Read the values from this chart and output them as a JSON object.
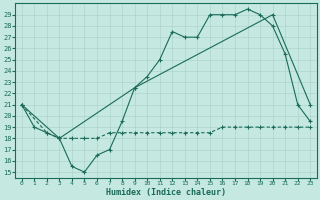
{
  "xlabel": "Humidex (Indice chaleur)",
  "bg_color": "#c5e8e0",
  "line_color": "#1a6b5a",
  "grid_color": "#aad0c8",
  "xlim": [
    -0.5,
    23.5
  ],
  "ylim": [
    14.5,
    30.0
  ],
  "xticks": [
    0,
    1,
    2,
    3,
    4,
    5,
    6,
    7,
    8,
    9,
    10,
    11,
    12,
    13,
    14,
    15,
    16,
    17,
    18,
    19,
    20,
    21,
    22,
    23
  ],
  "yticks": [
    15,
    16,
    17,
    18,
    19,
    20,
    21,
    22,
    23,
    24,
    25,
    26,
    27,
    28,
    29
  ],
  "line1_x": [
    0,
    1,
    2,
    3,
    4,
    5,
    6,
    7,
    8,
    9,
    10,
    11,
    12,
    13,
    14,
    15,
    16,
    17,
    18,
    19,
    20,
    21,
    22,
    23
  ],
  "line1_y": [
    21.0,
    19.0,
    18.5,
    18.0,
    15.5,
    15.0,
    16.5,
    17.0,
    19.5,
    22.5,
    23.5,
    25.0,
    27.5,
    27.0,
    27.0,
    29.0,
    29.0,
    29.0,
    29.5,
    29.0,
    28.0,
    25.5,
    21.0,
    19.5
  ],
  "line2_x": [
    0,
    2,
    3,
    4,
    5,
    6,
    7,
    8,
    9,
    10,
    11,
    12,
    13,
    14,
    15,
    16,
    17,
    18,
    19,
    20,
    21,
    22,
    23
  ],
  "line2_y": [
    21.0,
    18.5,
    18.0,
    18.0,
    18.0,
    18.0,
    18.5,
    18.5,
    18.5,
    18.5,
    18.5,
    18.5,
    18.5,
    18.5,
    18.5,
    19.0,
    19.0,
    19.0,
    19.0,
    19.0,
    19.0,
    19.0,
    19.0
  ],
  "line3_x": [
    0,
    3,
    9,
    20,
    23
  ],
  "line3_y": [
    21.0,
    18.0,
    22.5,
    29.0,
    21.0
  ]
}
